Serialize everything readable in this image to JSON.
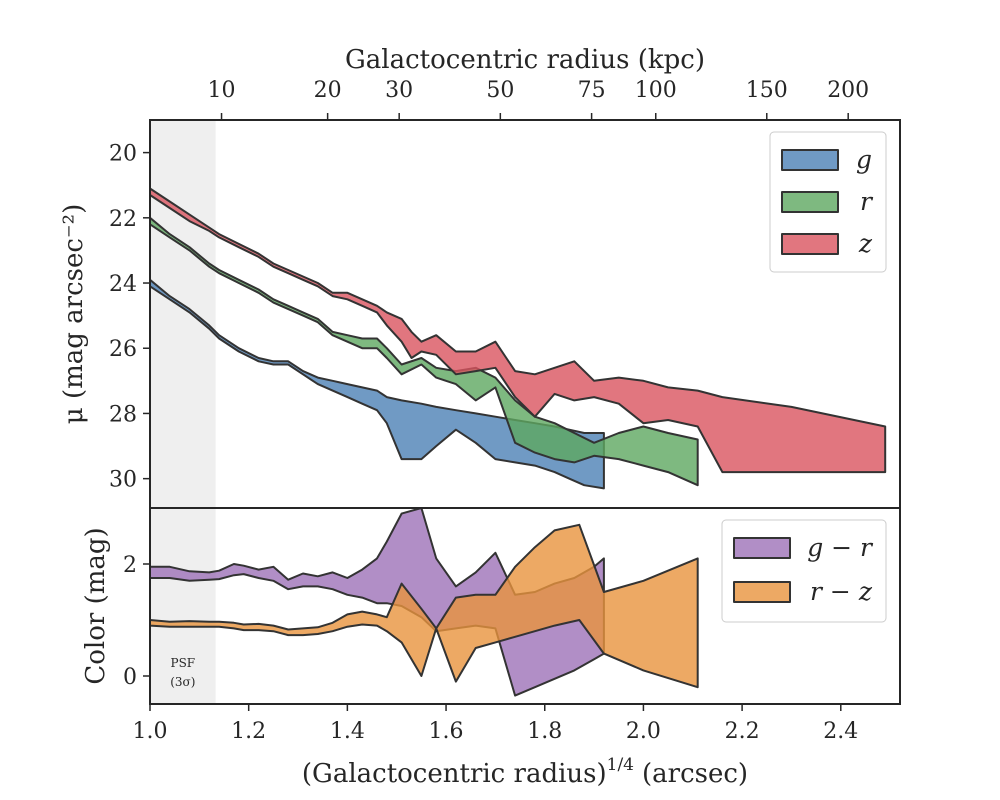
{
  "chart_data": {
    "type": "area",
    "x_axis_label": "(Galactocentric radius)",
    "x_axis_sup": "1/4",
    "x_axis_unit": "(arcsec)",
    "top_axis_label": "Galactocentric radius (kpc)",
    "x_ticks": [
      "1.0",
      "1.2",
      "1.4",
      "1.6",
      "1.8",
      "2.0",
      "2.2",
      "2.4"
    ],
    "x_range": [
      1.0,
      2.52
    ],
    "top_ticks": [
      {
        "label": "10",
        "value": 1.145
      },
      {
        "label": "20",
        "value": 1.36
      },
      {
        "label": "30",
        "value": 1.505
      },
      {
        "label": "50",
        "value": 1.71
      },
      {
        "label": "75",
        "value": 1.895
      },
      {
        "label": "100",
        "value": 2.025
      },
      {
        "label": "150",
        "value": 2.25
      },
      {
        "label": "200",
        "value": 2.415
      }
    ],
    "psf_region": {
      "x": [
        1.0,
        1.133
      ],
      "label_line1": "PSF",
      "label_line2": "(3σ)"
    },
    "panels": [
      {
        "id": "surface-brightness",
        "ylabel": "μ (mag arcsec⁻²)",
        "y_range": [
          19.0,
          30.9
        ],
        "y_inverted": true,
        "y_ticks": [
          20,
          22,
          24,
          26,
          28,
          30
        ],
        "legend_loc": "upper right",
        "series": [
          {
            "name": "g",
            "color": "#4c81b5",
            "x": [
              1.0,
              1.04,
              1.08,
              1.12,
              1.14,
              1.18,
              1.22,
              1.25,
              1.28,
              1.31,
              1.34,
              1.37,
              1.4,
              1.43,
              1.46,
              1.48,
              1.51,
              1.55,
              1.58,
              1.62,
              1.66,
              1.7,
              1.74,
              1.78,
              1.82,
              1.85,
              1.88,
              1.92
            ],
            "lower": [
              23.9,
              24.4,
              24.8,
              25.3,
              25.6,
              26.0,
              26.3,
              26.4,
              26.4,
              26.7,
              26.9,
              27.0,
              27.1,
              27.2,
              27.3,
              27.5,
              27.6,
              27.7,
              27.8,
              27.9,
              28.0,
              28.1,
              28.2,
              28.3,
              28.4,
              28.5,
              28.6,
              28.6
            ],
            "upper": [
              24.1,
              24.5,
              24.9,
              25.4,
              25.7,
              26.1,
              26.4,
              26.5,
              26.5,
              26.8,
              27.1,
              27.3,
              27.5,
              27.7,
              27.9,
              28.3,
              29.4,
              29.4,
              29.0,
              28.5,
              28.9,
              29.4,
              29.5,
              29.6,
              29.8,
              30.0,
              30.2,
              30.3
            ]
          },
          {
            "name": "r",
            "color": "#5ea860",
            "x": [
              1.0,
              1.04,
              1.08,
              1.12,
              1.14,
              1.18,
              1.22,
              1.25,
              1.28,
              1.31,
              1.34,
              1.37,
              1.4,
              1.43,
              1.46,
              1.48,
              1.51,
              1.55,
              1.58,
              1.62,
              1.66,
              1.7,
              1.74,
              1.78,
              1.82,
              1.86,
              1.9,
              1.95,
              2.0,
              2.05,
              2.11
            ],
            "lower": [
              22.0,
              22.5,
              22.9,
              23.4,
              23.6,
              23.9,
              24.2,
              24.5,
              24.7,
              24.9,
              25.1,
              25.5,
              25.6,
              25.7,
              25.7,
              26.0,
              26.5,
              26.3,
              26.6,
              26.7,
              26.6,
              26.9,
              27.6,
              28.1,
              28.3,
              28.6,
              28.9,
              28.6,
              28.4,
              28.6,
              28.8
            ],
            "upper": [
              22.2,
              22.6,
              23.0,
              23.5,
              23.7,
              24.0,
              24.3,
              24.6,
              24.8,
              25.0,
              25.2,
              25.6,
              25.8,
              26.0,
              26.0,
              26.3,
              26.8,
              26.5,
              26.9,
              27.1,
              27.6,
              27.2,
              28.9,
              29.2,
              29.4,
              29.5,
              29.3,
              29.4,
              29.6,
              29.8,
              30.2
            ]
          },
          {
            "name": "z",
            "color": "#d9545f",
            "x": [
              1.0,
              1.04,
              1.08,
              1.12,
              1.14,
              1.18,
              1.22,
              1.25,
              1.28,
              1.31,
              1.34,
              1.37,
              1.4,
              1.43,
              1.46,
              1.48,
              1.51,
              1.53,
              1.55,
              1.58,
              1.62,
              1.66,
              1.7,
              1.74,
              1.78,
              1.82,
              1.86,
              1.9,
              1.95,
              2.0,
              2.05,
              2.11,
              2.16,
              2.3,
              2.49
            ],
            "lower": [
              21.1,
              21.5,
              21.9,
              22.3,
              22.5,
              22.8,
              23.1,
              23.4,
              23.6,
              23.8,
              24.0,
              24.3,
              24.3,
              24.5,
              24.7,
              24.9,
              25.1,
              25.5,
              25.8,
              25.6,
              26.1,
              26.1,
              25.8,
              26.7,
              26.8,
              26.6,
              26.4,
              27.0,
              26.9,
              27.0,
              27.2,
              27.3,
              27.5,
              27.8,
              28.4
            ],
            "upper": [
              21.3,
              21.7,
              22.1,
              22.4,
              22.6,
              22.9,
              23.2,
              23.5,
              23.7,
              23.9,
              24.1,
              24.4,
              24.5,
              24.7,
              24.9,
              25.3,
              25.8,
              26.3,
              26.1,
              26.2,
              26.8,
              26.7,
              26.6,
              27.5,
              28.1,
              27.4,
              27.6,
              27.5,
              27.7,
              28.3,
              28.2,
              28.4,
              29.8,
              29.8,
              29.8
            ]
          }
        ]
      },
      {
        "id": "color",
        "ylabel": "Color (mag)",
        "y_range": [
          -0.5,
          3.0
        ],
        "y_inverted": false,
        "y_ticks": [
          0,
          2
        ],
        "legend_loc": "upper right",
        "series": [
          {
            "name": "g − r",
            "color": "#9e72b8",
            "x": [
              1.0,
              1.04,
              1.08,
              1.12,
              1.14,
              1.17,
              1.19,
              1.22,
              1.25,
              1.28,
              1.31,
              1.34,
              1.37,
              1.4,
              1.43,
              1.46,
              1.48,
              1.51,
              1.55,
              1.58,
              1.62,
              1.66,
              1.7,
              1.74,
              1.78,
              1.82,
              1.86,
              1.9,
              1.92
            ],
            "lower": [
              1.75,
              1.75,
              1.7,
              1.72,
              1.73,
              1.8,
              1.82,
              1.75,
              1.7,
              1.55,
              1.6,
              1.6,
              1.55,
              1.45,
              1.4,
              1.3,
              1.3,
              1.25,
              1.05,
              0.8,
              0.85,
              0.9,
              0.85,
              -0.35,
              -0.2,
              -0.05,
              0.1,
              0.3,
              0.4
            ],
            "upper": [
              1.95,
              1.95,
              1.87,
              1.85,
              1.88,
              2.0,
              1.97,
              1.9,
              1.95,
              1.72,
              1.83,
              1.78,
              1.85,
              1.75,
              1.9,
              2.1,
              2.4,
              2.9,
              3.0,
              2.1,
              1.6,
              1.85,
              2.2,
              1.45,
              1.5,
              1.65,
              1.75,
              1.95,
              2.1
            ]
          },
          {
            "name": "r − z",
            "color": "#e8933d",
            "x": [
              1.0,
              1.04,
              1.08,
              1.12,
              1.14,
              1.17,
              1.19,
              1.22,
              1.25,
              1.28,
              1.31,
              1.34,
              1.37,
              1.4,
              1.43,
              1.46,
              1.48,
              1.51,
              1.55,
              1.58,
              1.62,
              1.66,
              1.7,
              1.74,
              1.78,
              1.82,
              1.87,
              1.92,
              2.0,
              2.11
            ],
            "lower": [
              0.9,
              0.88,
              0.88,
              0.88,
              0.88,
              0.85,
              0.82,
              0.82,
              0.8,
              0.73,
              0.73,
              0.75,
              0.8,
              0.88,
              0.92,
              0.9,
              0.8,
              0.6,
              0.0,
              0.85,
              -0.1,
              0.5,
              0.6,
              0.7,
              0.8,
              0.9,
              1.0,
              0.4,
              0.1,
              -0.2
            ],
            "upper": [
              1.0,
              0.97,
              0.98,
              0.97,
              0.97,
              0.95,
              0.92,
              0.93,
              0.9,
              0.83,
              0.85,
              0.87,
              0.95,
              1.1,
              1.15,
              1.1,
              1.05,
              1.65,
              1.2,
              0.85,
              1.4,
              1.45,
              1.45,
              1.95,
              2.3,
              2.6,
              2.7,
              1.5,
              1.7,
              2.1
            ]
          }
        ]
      }
    ]
  }
}
